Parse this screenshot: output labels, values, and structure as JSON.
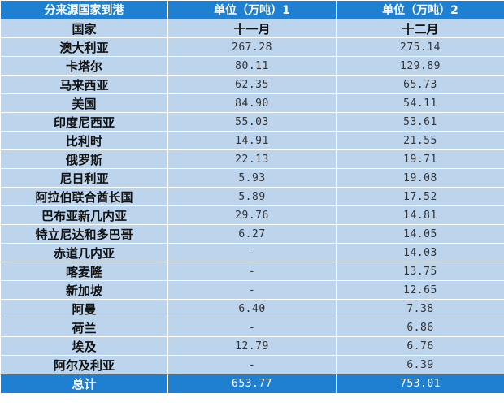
{
  "header": {
    "col1": "分来源国家到港",
    "col2": "单位（万吨）1",
    "col3": "单位（万吨）2"
  },
  "subheader": {
    "col1": "国家",
    "col2": "十一月",
    "col3": "十二月"
  },
  "rows": [
    {
      "country": "澳大利亚",
      "nov": "267.28",
      "dec": "275.14"
    },
    {
      "country": "卡塔尔",
      "nov": "80.11",
      "dec": "129.89"
    },
    {
      "country": "马来西亚",
      "nov": "62.35",
      "dec": "65.73"
    },
    {
      "country": "美国",
      "nov": "84.90",
      "dec": "54.11"
    },
    {
      "country": "印度尼西亚",
      "nov": "55.03",
      "dec": "53.61"
    },
    {
      "country": "比利时",
      "nov": "14.91",
      "dec": "21.55"
    },
    {
      "country": "俄罗斯",
      "nov": "22.13",
      "dec": "19.71"
    },
    {
      "country": "尼日利亚",
      "nov": "5.93",
      "dec": "19.08"
    },
    {
      "country": "阿拉伯联合酋长国",
      "nov": "5.89",
      "dec": "17.52"
    },
    {
      "country": "巴布亚新几内亚",
      "nov": "29.76",
      "dec": "14.81"
    },
    {
      "country": "特立尼达和多巴哥",
      "nov": "6.27",
      "dec": "14.05"
    },
    {
      "country": "赤道几内亚",
      "nov": "-",
      "dec": "14.03"
    },
    {
      "country": "喀麦隆",
      "nov": "-",
      "dec": "13.75"
    },
    {
      "country": "新加坡",
      "nov": "-",
      "dec": "12.65"
    },
    {
      "country": "阿曼",
      "nov": "6.40",
      "dec": "7.38"
    },
    {
      "country": "荷兰",
      "nov": "-",
      "dec": "6.86"
    },
    {
      "country": "埃及",
      "nov": "12.79",
      "dec": "6.76"
    },
    {
      "country": "阿尔及利亚",
      "nov": "-",
      "dec": "6.39"
    }
  ],
  "total": {
    "label": "总计",
    "nov": "653.77",
    "dec": "753.01"
  },
  "colors": {
    "header_bg": "#1f7fd1",
    "row_bg": "#bcd4ec"
  }
}
